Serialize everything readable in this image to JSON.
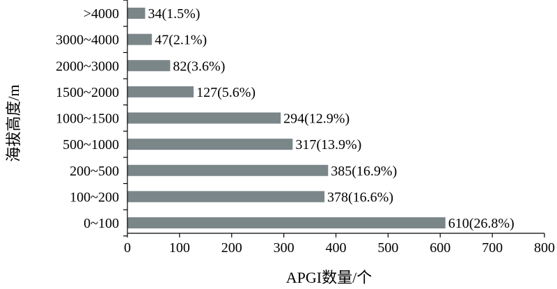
{
  "chart_data": {
    "type": "bar",
    "orientation": "horizontal",
    "title": "",
    "xlabel": "APGI数量/个",
    "ylabel": "海拔高度/m",
    "categories": [
      "0~100",
      "100~200",
      "200~500",
      "500~1000",
      "1000~1500",
      "1500~2000",
      "2000~3000",
      "3000~4000",
      ">4000"
    ],
    "values": [
      610,
      378,
      385,
      317,
      294,
      127,
      82,
      47,
      34
    ],
    "data_labels": [
      "610(26.8%)",
      "378(16.6%)",
      "385(16.9%)",
      "317(13.9%)",
      "294(12.9%)",
      "127(5.6%)",
      "82(3.6%)",
      "47(2.1%)",
      "34(1.5%)"
    ],
    "xlim": [
      0,
      800
    ],
    "xticks": [
      "0",
      "100",
      "200",
      "300",
      "400",
      "500",
      "600",
      "700",
      "800"
    ],
    "grid": false,
    "legend": "none",
    "bar_color": "#7b8689",
    "axis_color": "#000000"
  }
}
